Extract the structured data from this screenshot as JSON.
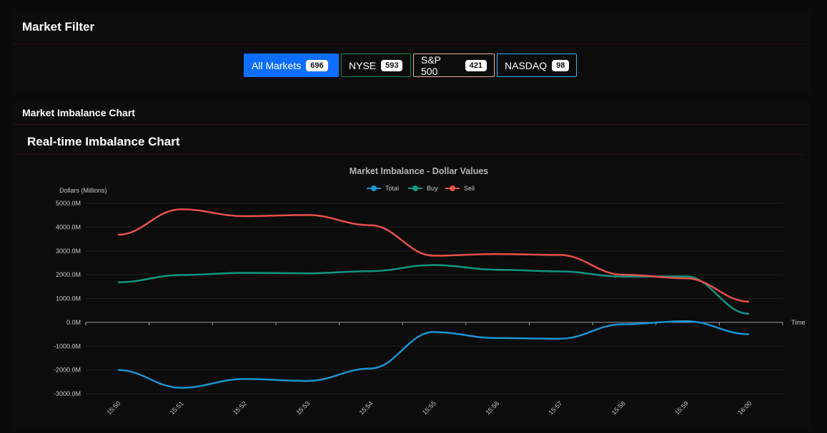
{
  "market_filter": {
    "title": "Market Filter",
    "buttons": [
      {
        "label": "All Markets",
        "count": "696",
        "active": true,
        "color": "#0d6efd"
      },
      {
        "label": "NYSE",
        "count": "593",
        "active": false,
        "color": "#198754"
      },
      {
        "label": "S&P 500",
        "count": "421",
        "active": false,
        "color": "#e6b4a0"
      },
      {
        "label": "NASDAQ",
        "count": "98",
        "active": false,
        "color": "#31b5e6"
      }
    ]
  },
  "imbalance_section": {
    "title": "Market Imbalance Chart",
    "card_title": "Real-time Imbalance Chart"
  },
  "chart_data": {
    "type": "line",
    "title": "Market Imbalance - Dollar Values",
    "xlabel": "Time",
    "ylabel": "Dollars (Millions)",
    "ylim": [
      -3000,
      5000
    ],
    "yticks": [
      "5000.0M",
      "4000.0M",
      "3000.0M",
      "2000.0M",
      "1000.0M",
      "0.0M",
      "-1000.0M",
      "-2000.0M",
      "-3000.0M"
    ],
    "categories": [
      "15:50",
      "15:51",
      "15:52",
      "15:53",
      "15:54",
      "15:55",
      "15:56",
      "15:57",
      "15:58",
      "15:59",
      "16:00"
    ],
    "legend_position": "top-center",
    "grid": true,
    "series": [
      {
        "name": "Total",
        "color": "#1b93d0",
        "values": [
          -2000,
          -2750,
          -2380,
          -2460,
          -1940,
          -410,
          -660,
          -690,
          -80,
          50,
          -500
        ]
      },
      {
        "name": "Buy",
        "color": "#109580",
        "values": [
          1680,
          1990,
          2080,
          2060,
          2150,
          2410,
          2210,
          2140,
          1920,
          1930,
          360
        ]
      },
      {
        "name": "Sell",
        "color": "#e8504a",
        "values": [
          3680,
          4750,
          4460,
          4510,
          4080,
          2800,
          2870,
          2830,
          2000,
          1850,
          870
        ]
      }
    ]
  }
}
